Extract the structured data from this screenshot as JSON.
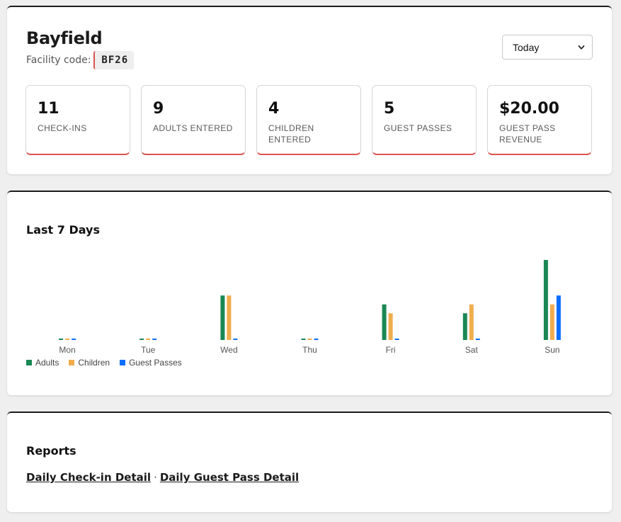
{
  "facility": {
    "name": "Bayfield",
    "code_label": "Facility code:",
    "code": "BF26"
  },
  "period": {
    "selected": "Today"
  },
  "stats": [
    {
      "value": "11",
      "label": "CHECK-INS"
    },
    {
      "value": "9",
      "label": "ADULTS ENTERED"
    },
    {
      "value": "4",
      "label": "CHILDREN ENTERED"
    },
    {
      "value": "5",
      "label": "GUEST PASSES"
    },
    {
      "value": "$20.00",
      "label": "GUEST PASS REVENUE"
    }
  ],
  "chart_section": {
    "title": "Last 7 Days"
  },
  "chart_data": {
    "type": "bar",
    "categories": [
      "Mon",
      "Tue",
      "Wed",
      "Thu",
      "Fri",
      "Sat",
      "Sun"
    ],
    "series": [
      {
        "name": "Adults",
        "color": "#1a8754",
        "values": [
          0,
          0,
          5,
          0,
          4,
          3,
          9
        ]
      },
      {
        "name": "Children",
        "color": "#f0ad4e",
        "values": [
          0,
          0,
          5,
          0,
          3,
          4,
          4
        ]
      },
      {
        "name": "Guest Passes",
        "color": "#0d6efd",
        "values": [
          0,
          0,
          0,
          0,
          0,
          0,
          5
        ]
      }
    ],
    "ylim": [
      0,
      9
    ],
    "grid": false,
    "legend": "bottom-left"
  },
  "reports": {
    "title": "Reports",
    "links": [
      "Daily Check-in Detail",
      "Daily Guest Pass Detail"
    ],
    "separator": "·"
  }
}
